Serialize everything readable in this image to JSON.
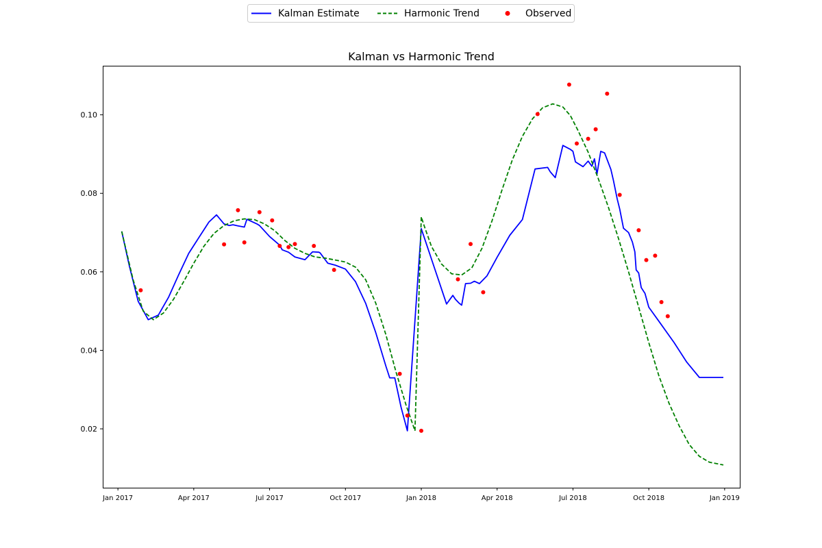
{
  "chart_data": {
    "type": "line",
    "title": "Kalman vs Harmonic Trend",
    "xlabel": "",
    "ylabel": "",
    "xlim": [
      -0.6,
      24.6
    ],
    "ylim": [
      0.005,
      0.1125
    ],
    "x_ticks": [
      {
        "pos": 0,
        "label": "Jan 2017"
      },
      {
        "pos": 3,
        "label": "Apr 2017"
      },
      {
        "pos": 6,
        "label": "Jul 2017"
      },
      {
        "pos": 9,
        "label": "Oct 2017"
      },
      {
        "pos": 12,
        "label": "Jan 2018"
      },
      {
        "pos": 15,
        "label": "Apr 2018"
      },
      {
        "pos": 18,
        "label": "Jul 2018"
      },
      {
        "pos": 21,
        "label": "Oct 2018"
      },
      {
        "pos": 24,
        "label": "Jan 2019"
      }
    ],
    "y_ticks": [
      {
        "value": 0.02,
        "label": "0.02"
      },
      {
        "value": 0.04,
        "label": "0.04"
      },
      {
        "value": 0.06,
        "label": "0.06"
      },
      {
        "value": 0.08,
        "label": "0.08"
      },
      {
        "value": 0.1,
        "label": "0.10"
      }
    ],
    "grid": false,
    "legend_position": "top-center",
    "series": [
      {
        "name": "Kalman Estimate",
        "style": "solid",
        "color": "#0000ff",
        "x": [
          0.1,
          0.4,
          0.8,
          1.2,
          1.6,
          2.0,
          2.4,
          2.8,
          3.2,
          3.6,
          4.0,
          4.4,
          4.55,
          4.75,
          4.85,
          5.05,
          5.3,
          5.5,
          5.8,
          6.2,
          6.4,
          6.5,
          6.75,
          6.85,
          7.0,
          7.2,
          7.6,
          7.9,
          8.0,
          8.3,
          8.4,
          8.6,
          9.0,
          9.4,
          10.0,
          10.6,
          11.0,
          11.2,
          11.45,
          11.85,
          12.0,
          12.3,
          12.8,
          13.25,
          13.45,
          13.8,
          14.0,
          14.05,
          14.3,
          14.4,
          14.55,
          14.6,
          14.8,
          15.5,
          16.0,
          16.5,
          17.0,
          17.4,
          17.5,
          17.7,
          18.0,
          18.1,
          18.3,
          18.6,
          18.85,
          18.95,
          19.1,
          19.2,
          19.5,
          19.6,
          19.7,
          19.8,
          20.05,
          20.25,
          20.35,
          20.4,
          20.55,
          20.65,
          20.7,
          20.95,
          21.05,
          21.3,
          21.45,
          21.5,
          21.65,
          21.8,
          22.0,
          22.5,
          23.0,
          23.5,
          23.8
        ],
        "y": [
          0.0703,
          0.0615,
          0.0525,
          0.0478,
          0.049,
          0.0535,
          0.0592,
          0.0647,
          0.0687,
          0.0727,
          0.0747,
          0.0718,
          0.0722,
          0.0717,
          0.0713,
          0.0732,
          0.0722,
          0.0718,
          0.069,
          0.0668,
          0.0658,
          0.065,
          0.0637,
          0.0631,
          0.065,
          0.065,
          0.0648,
          0.0622,
          0.062,
          0.0608,
          0.0602,
          0.059,
          0.0545,
          0.0475,
          0.033,
          0.032,
          0.0205,
          0.0705,
          0.0635,
          0.0545,
          0.0518,
          0.0541,
          0.0518,
          0.0515,
          0.057,
          0.0575,
          0.057,
          0.0584,
          0.0602,
          0.0628,
          0.0652,
          0.0668,
          0.0716,
          0.0733,
          0.0863,
          0.0865,
          0.084,
          0.0922,
          0.0912,
          0.0866,
          0.0882,
          0.0867,
          0.0887,
          0.085,
          0.0908,
          0.0898,
          0.086,
          0.0835,
          0.0787,
          0.0759,
          0.0711,
          0.0703,
          0.0677,
          0.065,
          0.0603,
          0.0596,
          0.056,
          0.0535,
          0.0535,
          0.0505,
          0.0467,
          0.0331,
          0.0331,
          0.0331,
          0.0331,
          0.0331,
          0.0331,
          0.0331,
          0.0331,
          0.0331,
          0.0331
        ],
        "x_clean": [
          0.15,
          0.45,
          0.8,
          1.2,
          1.6,
          2.0,
          2.4,
          2.8,
          3.2,
          3.6,
          3.9,
          4.2,
          4.4,
          4.55,
          4.75,
          5.0,
          5.1,
          5.5,
          5.6,
          6.0,
          6.4,
          6.5,
          6.75,
          7.0,
          7.4,
          7.7,
          7.95,
          8.0,
          8.3,
          8.6,
          9.0,
          9.4,
          9.8,
          10.2,
          10.6,
          10.75,
          10.95,
          11.2,
          11.45,
          12.0,
          12.6,
          13.0,
          13.25,
          13.35,
          13.5,
          13.6,
          13.75,
          13.95,
          14.1,
          14.3,
          14.6,
          15.0,
          15.5,
          16.0,
          16.5,
          17.0,
          17.1,
          17.3,
          17.6,
          17.9,
          18.0,
          18.1,
          18.4,
          18.6,
          18.75,
          18.85,
          18.95,
          19.1,
          19.25,
          19.5,
          19.6,
          19.75,
          19.85,
          20.0,
          20.2,
          20.35,
          20.45,
          20.5,
          20.6,
          20.7,
          20.85,
          21.0,
          21.5,
          22.0,
          22.5,
          23.0,
          23.5,
          23.95
        ],
        "y_clean": [
          0.0703,
          0.0615,
          0.0525,
          0.0478,
          0.049,
          0.0535,
          0.0592,
          0.0647,
          0.0687,
          0.0727,
          0.0745,
          0.0722,
          0.0718,
          0.072,
          0.0717,
          0.0714,
          0.0734,
          0.0722,
          0.0718,
          0.069,
          0.0668,
          0.0656,
          0.065,
          0.0638,
          0.0631,
          0.0651,
          0.065,
          0.0648,
          0.0622,
          0.0617,
          0.0607,
          0.0575,
          0.052,
          0.0445,
          0.036,
          0.033,
          0.033,
          0.0255,
          0.0195,
          0.071,
          0.0595,
          0.0518,
          0.054,
          0.053,
          0.052,
          0.0515,
          0.057,
          0.0571,
          0.0576,
          0.057,
          0.059,
          0.0637,
          0.0693,
          0.0733,
          0.0862,
          0.0866,
          0.0855,
          0.084,
          0.0922,
          0.0912,
          0.0907,
          0.088,
          0.0868,
          0.0882,
          0.0869,
          0.0888,
          0.0849,
          0.0907,
          0.0903,
          0.0861,
          0.0833,
          0.0786,
          0.076,
          0.0711,
          0.07,
          0.0676,
          0.0651,
          0.0605,
          0.0597,
          0.056,
          0.0545,
          0.051,
          0.0465,
          0.042,
          0.037,
          0.0331,
          0.0331,
          0.0331
        ]
      },
      {
        "name": "Harmonic Trend",
        "style": "dashed",
        "color": "#008000",
        "x": [
          0.15,
          0.6,
          1.0,
          1.4,
          1.8,
          2.2,
          2.6,
          3.0,
          3.4,
          3.8,
          4.2,
          4.6,
          5.0,
          5.4,
          5.8,
          6.2,
          6.6,
          7.0,
          7.4,
          7.8,
          8.2,
          8.6,
          9.0,
          9.4,
          9.8,
          10.2,
          10.6,
          11.0,
          11.4,
          11.75,
          12.0,
          12.1,
          12.4,
          12.8,
          13.2,
          13.6,
          14.0,
          14.4,
          14.8,
          15.2,
          15.6,
          16.0,
          16.4,
          16.8,
          17.2,
          17.6,
          17.9,
          18.2,
          18.6,
          19.0,
          19.4,
          19.8,
          20.2,
          20.6,
          21.0,
          21.4,
          21.8,
          22.2,
          22.6,
          23.0,
          23.4,
          23.95
        ],
        "y": [
          0.0703,
          0.058,
          0.05,
          0.0478,
          0.0495,
          0.053,
          0.0575,
          0.0622,
          0.0665,
          0.0698,
          0.0718,
          0.073,
          0.0735,
          0.0733,
          0.0722,
          0.0705,
          0.068,
          0.066,
          0.0647,
          0.0638,
          0.0635,
          0.063,
          0.0625,
          0.0612,
          0.058,
          0.052,
          0.044,
          0.0345,
          0.026,
          0.0195,
          0.074,
          0.072,
          0.0665,
          0.062,
          0.0595,
          0.0592,
          0.061,
          0.066,
          0.073,
          0.081,
          0.0885,
          0.0945,
          0.099,
          0.1018,
          0.1028,
          0.102,
          0.0998,
          0.096,
          0.0905,
          0.0838,
          0.0765,
          0.0685,
          0.06,
          0.051,
          0.042,
          0.0335,
          0.025,
          0.017,
          0.0108,
          0.0108,
          0.0108,
          0.0108
        ]
      }
    ],
    "series_final": [
      {
        "name": "Kalman Estimate",
        "x": [
          0.15,
          0.45,
          0.8,
          1.2,
          1.6,
          2.0,
          2.4,
          2.8,
          3.2,
          3.6,
          3.9,
          4.2,
          4.4,
          4.55,
          4.75,
          5.0,
          5.1,
          5.5,
          5.6,
          6.0,
          6.4,
          6.5,
          6.75,
          7.0,
          7.4,
          7.7,
          7.95,
          8.0,
          8.3,
          8.6,
          9.0,
          9.4,
          9.8,
          10.2,
          10.6,
          10.75,
          10.95,
          11.2,
          11.45,
          12.0,
          12.6,
          13.0,
          13.25,
          13.35,
          13.5,
          13.6,
          13.75,
          13.95,
          14.1,
          14.3,
          14.6,
          15.0,
          15.5,
          16.0,
          16.5,
          17.0,
          17.1,
          17.3,
          17.6,
          17.9,
          18.0,
          18.1,
          18.4,
          18.6,
          18.75,
          18.85,
          18.95,
          19.1,
          19.25,
          19.5,
          19.6,
          19.75,
          19.85,
          20.0,
          20.2,
          20.35,
          20.45,
          20.5,
          20.6,
          20.7,
          20.85,
          21.0,
          21.5,
          22.0,
          22.5,
          23.0,
          23.5,
          23.95
        ],
        "y": [
          0.0703,
          0.0615,
          0.0525,
          0.0478,
          0.049,
          0.0535,
          0.0592,
          0.0647,
          0.0687,
          0.0727,
          0.0745,
          0.0722,
          0.0718,
          0.072,
          0.0717,
          0.0714,
          0.0734,
          0.0722,
          0.0718,
          0.069,
          0.0668,
          0.0656,
          0.065,
          0.0638,
          0.0631,
          0.0651,
          0.065,
          0.0648,
          0.0622,
          0.0617,
          0.0607,
          0.0575,
          0.052,
          0.0445,
          0.036,
          0.033,
          0.033,
          0.0255,
          0.0195,
          0.071,
          0.0595,
          0.0518,
          0.054,
          0.053,
          0.052,
          0.0515,
          0.057,
          0.0571,
          0.0576,
          0.057,
          0.059,
          0.0637,
          0.0693,
          0.0733,
          0.0862,
          0.0866,
          0.0855,
          0.084,
          0.0922,
          0.0912,
          0.0907,
          0.088,
          0.0868,
          0.0882,
          0.0869,
          0.0888,
          0.0849,
          0.0907,
          0.0903,
          0.0861,
          0.0833,
          0.0786,
          0.076,
          0.0711,
          0.07,
          0.0676,
          0.0651,
          0.0605,
          0.0597,
          0.056,
          0.0545,
          0.051,
          0.0465,
          0.042,
          0.037,
          0.0331,
          0.0331,
          0.0331
        ]
      },
      {
        "name": "Harmonic Trend",
        "x": [
          0.15,
          0.6,
          1.0,
          1.4,
          1.8,
          2.2,
          2.6,
          3.0,
          3.4,
          3.8,
          4.2,
          4.6,
          5.0,
          5.4,
          5.8,
          6.2,
          6.6,
          7.0,
          7.4,
          7.8,
          8.2,
          8.6,
          9.0,
          9.4,
          9.8,
          10.2,
          10.6,
          11.0,
          11.4,
          11.75,
          12.0,
          12.1,
          12.4,
          12.8,
          13.2,
          13.6,
          14.0,
          14.4,
          14.8,
          15.2,
          15.6,
          16.0,
          16.4,
          16.8,
          17.2,
          17.6,
          17.9,
          18.2,
          18.6,
          19.0,
          19.4,
          19.8,
          20.2,
          20.6,
          21.0,
          21.4,
          21.8,
          22.2,
          22.6,
          23.0,
          23.4,
          23.95
        ],
        "y": [
          0.0703,
          0.058,
          0.05,
          0.0478,
          0.0495,
          0.053,
          0.0575,
          0.0622,
          0.0665,
          0.0698,
          0.0718,
          0.073,
          0.0735,
          0.0733,
          0.0722,
          0.0705,
          0.068,
          0.066,
          0.0647,
          0.0638,
          0.0635,
          0.063,
          0.0625,
          0.0612,
          0.058,
          0.052,
          0.044,
          0.0345,
          0.026,
          0.0195,
          0.074,
          0.072,
          0.0665,
          0.062,
          0.0595,
          0.0592,
          0.061,
          0.066,
          0.073,
          0.081,
          0.0885,
          0.0945,
          0.099,
          0.1018,
          0.1028,
          0.102,
          0.0998,
          0.096,
          0.0905,
          0.0838,
          0.0765,
          0.0685,
          0.06,
          0.051,
          0.042,
          0.0335,
          0.0265,
          0.0208,
          0.016,
          0.013,
          0.0115,
          0.0108
        ]
      }
    ],
    "observed": {
      "name": "Observed",
      "color": "#ff0000",
      "x": [
        0.9,
        4.2,
        4.75,
        5.0,
        5.6,
        6.1,
        6.4,
        6.75,
        7.0,
        7.75,
        8.55,
        13.45,
        13.95,
        14.45,
        16.6,
        17.85,
        18.15,
        18.6,
        18.9,
        19.35,
        19.85,
        20.6,
        20.9,
        21.25,
        21.5
      ],
      "y": [
        0.0553,
        0.067,
        0.0757,
        0.0675,
        0.0752,
        0.0731,
        0.0666,
        0.0663,
        0.0671,
        0.0666,
        0.0605,
        0.0581,
        0.0671,
        0.0548,
        0.1002,
        0.1077,
        0.0927,
        0.0939,
        0.0963,
        0.1054,
        0.0796,
        0.0706,
        0.063,
        0.0641,
        0.0523
      ]
    },
    "observed_extra": {
      "x": [
        11.15,
        11.45,
        12.0,
        21.75
      ],
      "y": [
        0.034,
        0.0234,
        0.0195,
        0.0487
      ]
    }
  },
  "legend": {
    "items": [
      {
        "label": "Kalman Estimate",
        "color": "#0000ff",
        "style": "solid"
      },
      {
        "label": "Harmonic Trend",
        "color": "#008000",
        "style": "dashed"
      },
      {
        "label": "Observed",
        "color": "#ff0000",
        "style": "dot"
      }
    ]
  }
}
